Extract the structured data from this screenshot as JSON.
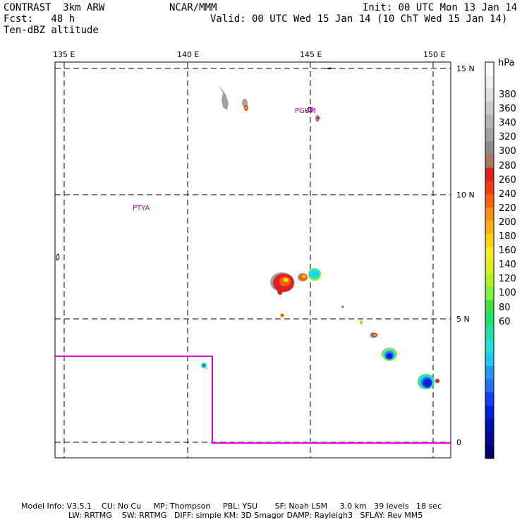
{
  "header": {
    "model": "CONTRAST  3km ARW",
    "forecast": "Fcst:   48 h",
    "field": "Ten-dBZ altitude",
    "center": "NCAR/MMM",
    "init": "Init: 00 UTC Mon 13 Jan 14",
    "valid": "Valid: 00 UTC Wed 15 Jan 14 (10 ChT Wed 15 Jan 14)"
  },
  "axes": {
    "lon_labels": [
      "135 E",
      "140 E",
      "145 E",
      "150 E"
    ],
    "lat_labels": [
      "15 N",
      "10 N",
      "5 N",
      "0"
    ]
  },
  "places": [
    "PGUM",
    "PTYA"
  ],
  "colorbar": {
    "unit": "hPa",
    "labels": [
      "380",
      "360",
      "340",
      "320",
      "300",
      "280",
      "260",
      "240",
      "220",
      "200",
      "180",
      "160",
      "140",
      "120",
      "100",
      "80",
      "60"
    ],
    "colors": [
      "#ffffff",
      "#f0f0f0",
      "#e0e0e0",
      "#c8c8c8",
      "#b4b4b4",
      "#a0a0a0",
      "#8c8c8c",
      "#a87860",
      "#e02020",
      "#f03a10",
      "#f86010",
      "#fc9010",
      "#fcb010",
      "#fcd010",
      "#f4ec20",
      "#d8f020",
      "#b0f020",
      "#80f040",
      "#40e040",
      "#20e070",
      "#20e0a8",
      "#20e0d8",
      "#20c8f0",
      "#2098f0",
      "#2070f0",
      "#1040f0",
      "#0020e0",
      "#0010b0",
      "#000890",
      "#000070"
    ]
  },
  "footer": {
    "line1": "Model Info: V3.5.1    CU: No Cu     MP: Thompson     PBL: YSU       SF: Noah LSM     3.0 km   39 levels   18 sec",
    "line2": "LW: RRTMG    SW: RRTMG   DIFF: simple KM: 3D Smagor DAMP: Rayleigh3   SFLAY: Rev MM5"
  }
}
